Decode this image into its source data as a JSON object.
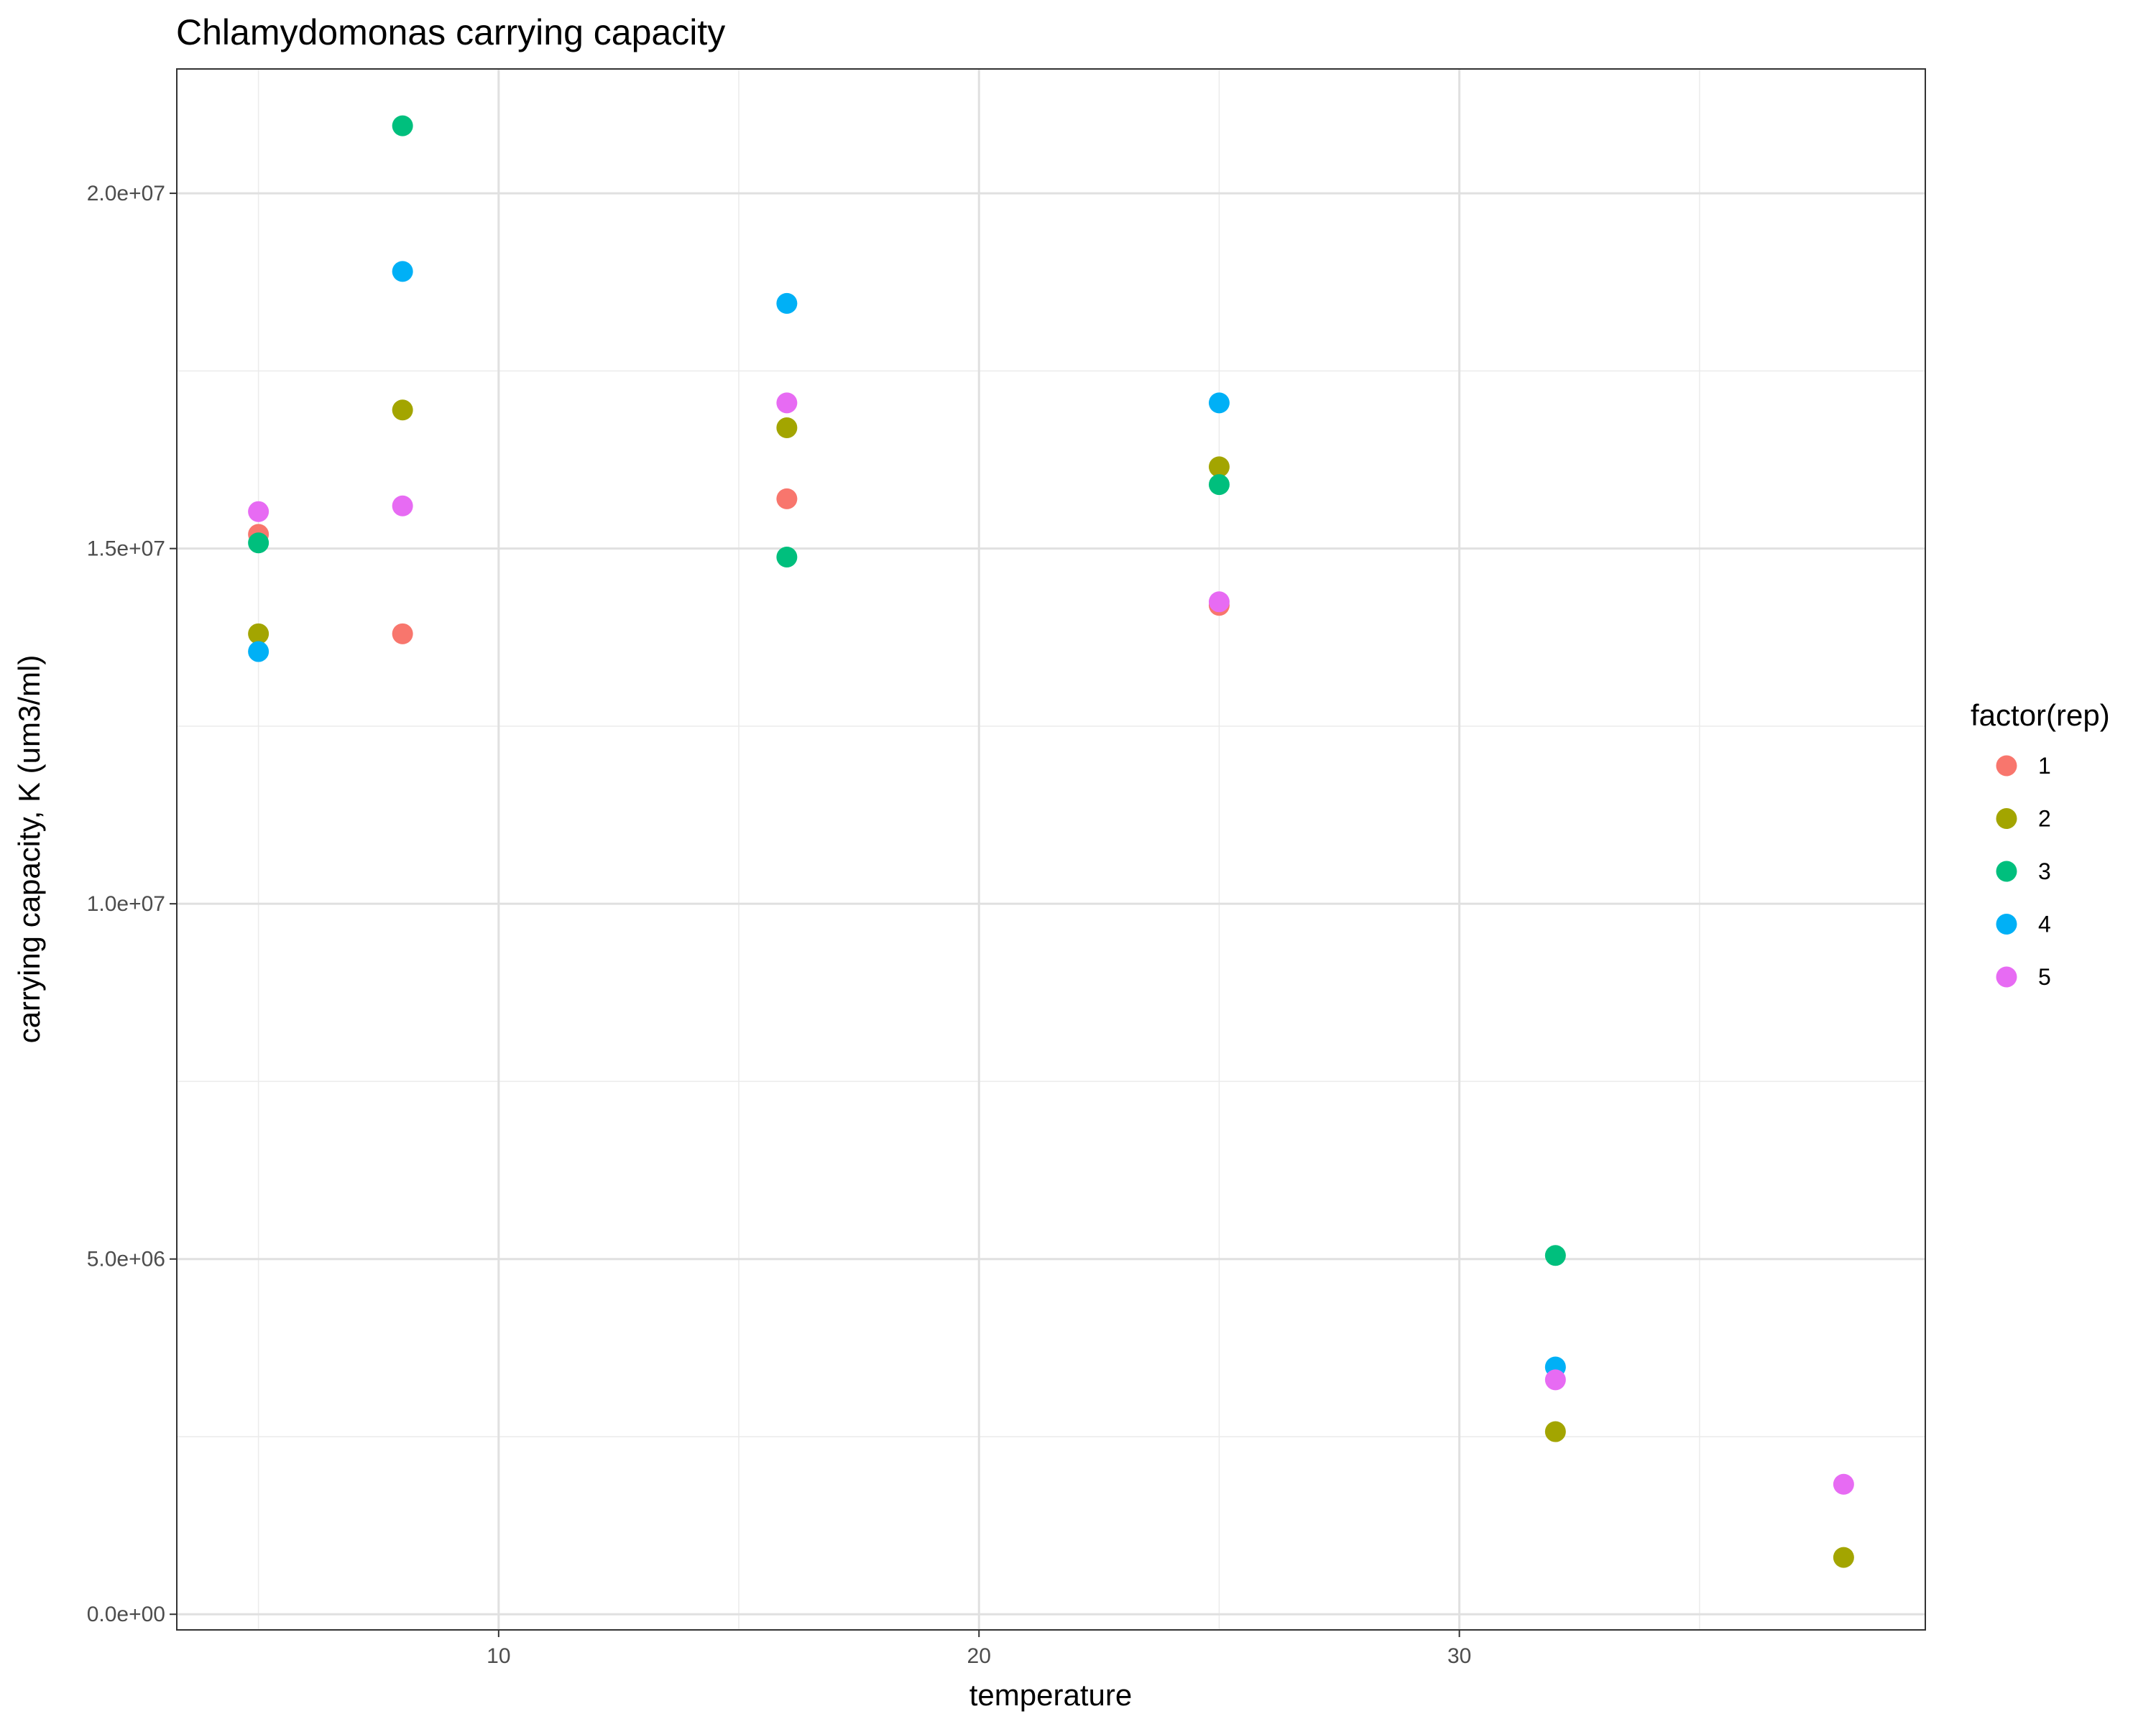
{
  "chart_data": {
    "type": "scatter",
    "title": "Chlamydomonas carrying capacity",
    "xlabel": "temperature",
    "ylabel": "carrying capacity, K (um3/ml)",
    "xlim": [
      3.3,
      39.7
    ],
    "ylim": [
      -220000,
      21750000
    ],
    "x_ticks": [
      10,
      20,
      30
    ],
    "x_tick_labels": [
      "10",
      "20",
      "30"
    ],
    "x_minor_ticks": [
      5,
      15,
      25,
      35
    ],
    "y_ticks": [
      0,
      5000000,
      10000000,
      15000000,
      20000000
    ],
    "y_tick_labels": [
      "0.0e+00",
      "5.0e+06",
      "1.0e+07",
      "1.5e+07",
      "2.0e+07"
    ],
    "y_minor_ticks": [
      2500000,
      7500000,
      12500000,
      17500000
    ],
    "grid": true,
    "legend": {
      "title": "factor(rep)",
      "placement": "right"
    },
    "series": [
      {
        "name": "1",
        "color": "#F8766D",
        "points": [
          [
            5,
            15200000
          ],
          [
            8,
            13800000
          ],
          [
            16,
            15700000
          ],
          [
            25,
            14200000
          ]
        ]
      },
      {
        "name": "2",
        "color": "#A3A500",
        "points": [
          [
            5,
            13800000
          ],
          [
            8,
            16950000
          ],
          [
            16,
            16700000
          ],
          [
            25,
            16150000
          ],
          [
            32,
            2570000
          ],
          [
            38,
            800000
          ]
        ]
      },
      {
        "name": "3",
        "color": "#00BF7D",
        "points": [
          [
            5,
            15080000
          ],
          [
            8,
            20950000
          ],
          [
            16,
            14880000
          ],
          [
            25,
            15900000
          ],
          [
            32,
            5050000
          ]
        ]
      },
      {
        "name": "4",
        "color": "#00B0F6",
        "points": [
          [
            5,
            13550000
          ],
          [
            8,
            18900000
          ],
          [
            16,
            18450000
          ],
          [
            25,
            17050000
          ],
          [
            32,
            3480000
          ]
        ]
      },
      {
        "name": "5",
        "color": "#E76BF3",
        "points": [
          [
            5,
            15520000
          ],
          [
            8,
            15600000
          ],
          [
            16,
            17050000
          ],
          [
            25,
            14250000
          ],
          [
            32,
            3300000
          ],
          [
            38,
            1830000
          ]
        ]
      }
    ]
  }
}
